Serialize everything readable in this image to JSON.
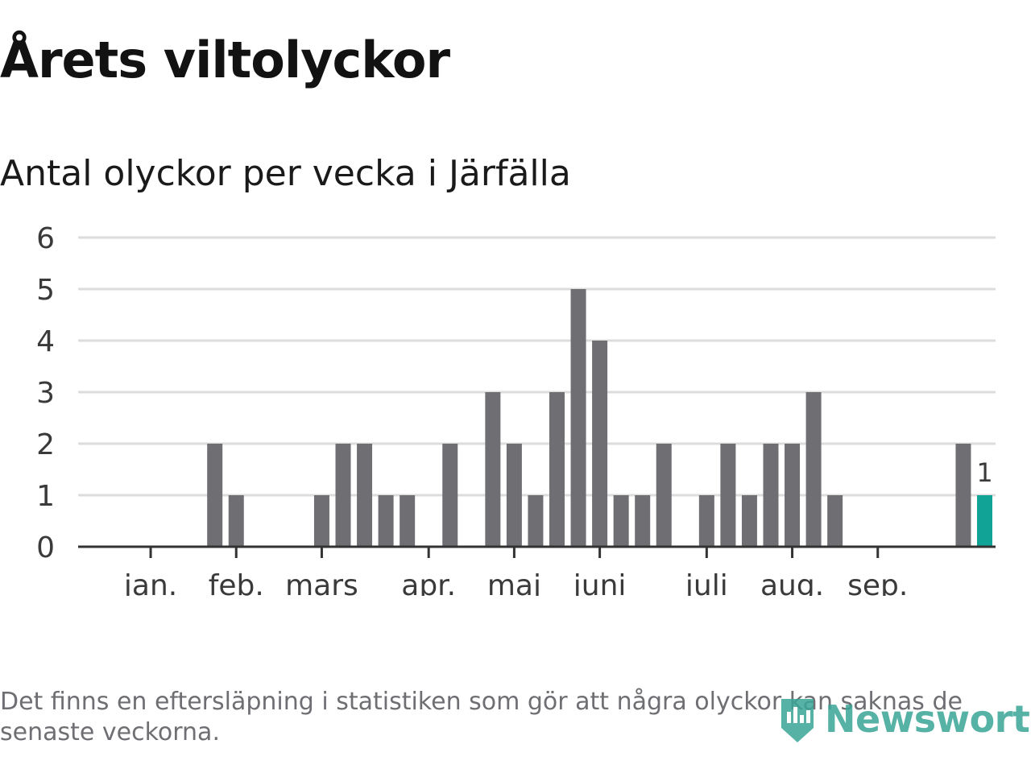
{
  "title": "Årets viltolyckor",
  "subtitle": "Antal olyckor per vecka i Järfälla",
  "footnote": "Det finns en eftersläpning i statistiken som gör att några olyckor kan saknas de senaste veckorna.",
  "logo": {
    "name": "Newsworthy",
    "icon": "newsworthy-logo-icon"
  },
  "colors": {
    "bar": "#6f6e73",
    "highlight": "#12a397",
    "grid": "#dcdcdc",
    "axis": "#333333"
  },
  "chart_data": {
    "type": "bar",
    "title": "Antal olyckor per vecka i Järfälla",
    "xlabel": "",
    "ylabel": "",
    "ylim": [
      0,
      6
    ],
    "yticks": [
      0,
      1,
      2,
      3,
      4,
      5,
      6
    ],
    "week_count": 41,
    "weeks": [
      1,
      2,
      3,
      4,
      5,
      6,
      7,
      8,
      9,
      10,
      11,
      12,
      13,
      14,
      15,
      16,
      17,
      18,
      19,
      20,
      21,
      22,
      23,
      24,
      25,
      26,
      27,
      28,
      29,
      30,
      31,
      32,
      33,
      34,
      35,
      36,
      37,
      38,
      39,
      40,
      41
    ],
    "values": [
      0,
      0,
      0,
      0,
      2,
      1,
      0,
      0,
      0,
      1,
      2,
      2,
      1,
      1,
      0,
      2,
      0,
      3,
      2,
      1,
      3,
      5,
      4,
      1,
      1,
      2,
      0,
      1,
      2,
      1,
      2,
      2,
      3,
      1,
      0,
      0,
      0,
      0,
      0,
      2,
      1
    ],
    "highlight_index": 40,
    "highlight_label": "1",
    "month_ticks": [
      {
        "label": "jan.",
        "week": 2.0
      },
      {
        "label": "feb.",
        "week": 6.0
      },
      {
        "label": "mars",
        "week": 10.0
      },
      {
        "label": "apr.",
        "week": 15.0
      },
      {
        "label": "maj",
        "week": 19.0
      },
      {
        "label": "juni",
        "week": 23.0
      },
      {
        "label": "juli",
        "week": 28.0
      },
      {
        "label": "aug.",
        "week": 32.0
      },
      {
        "label": "sep.",
        "week": 36.0
      }
    ],
    "grid": true
  }
}
